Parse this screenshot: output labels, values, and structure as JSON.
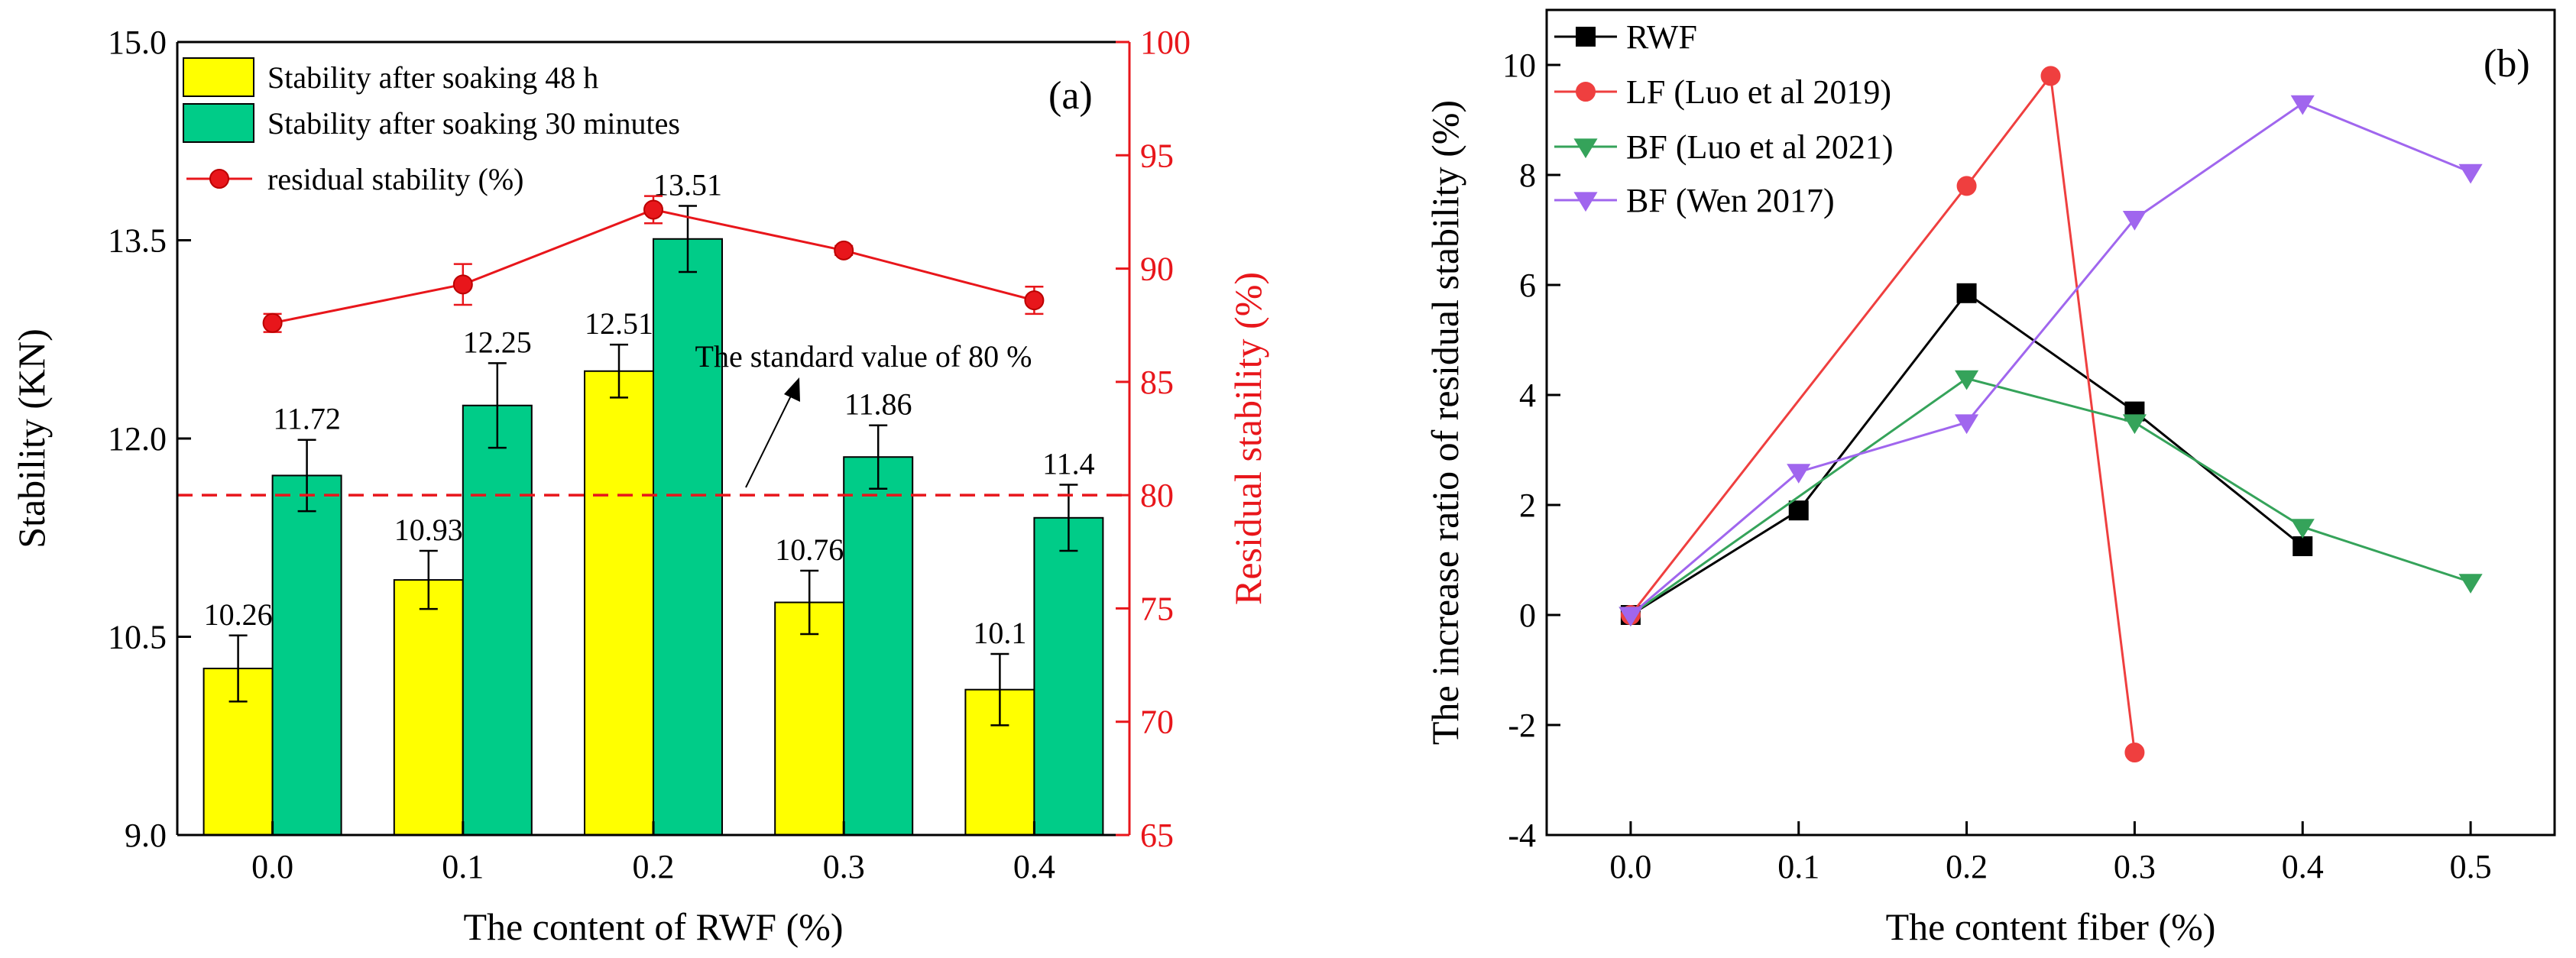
{
  "chart_data": [
    {
      "type": "bar",
      "panel_label": "(a)",
      "categories": [
        "0.0",
        "0.1",
        "0.2",
        "0.3",
        "0.4"
      ],
      "xlabel": "The content of RWF (%)",
      "ylabel": "Stability (KN)",
      "ylim": [
        9.0,
        15.0
      ],
      "yticks": [
        "9.0",
        "10.5",
        "12.0",
        "13.5",
        "15.0"
      ],
      "y2label": "Residual stability (%)",
      "y2lim": [
        65,
        100
      ],
      "y2ticks": [
        "65",
        "70",
        "75",
        "80",
        "85",
        "90",
        "95",
        "100"
      ],
      "y2_color": "#e8161b",
      "series": [
        {
          "name": "Stability after soaking 48 h",
          "color": "#ffff00",
          "values": [
            10.26,
            10.93,
            12.51,
            10.76,
            10.1
          ],
          "labels": [
            "10.26",
            "10.93",
            "12.51",
            "10.76",
            "10.1"
          ],
          "errors": [
            0.25,
            0.22,
            0.2,
            0.24,
            0.27
          ]
        },
        {
          "name": "Stability after soaking 30 minutes",
          "color": "#00cc88",
          "values": [
            11.72,
            12.25,
            13.51,
            11.86,
            11.4
          ],
          "labels": [
            "11.72",
            "12.25",
            "13.51",
            "11.86",
            "11.4"
          ],
          "errors": [
            0.27,
            0.32,
            0.25,
            0.24,
            0.25
          ]
        },
        {
          "name": "residual stability (%)",
          "type": "line",
          "axis": "right",
          "color": "#e8161b",
          "values": [
            87.6,
            89.3,
            92.6,
            90.8,
            88.6
          ],
          "errors": [
            0.4,
            0.9,
            0.6,
            0.2,
            0.6
          ]
        }
      ],
      "reference_line": {
        "value": 80,
        "axis": "right",
        "label": "The standard value of 80 %"
      },
      "legend": "top-left"
    },
    {
      "type": "line",
      "panel_label": "(b)",
      "xlabel": "The content fiber (%)",
      "ylabel": "The increase ratio of residual stability (%)",
      "xlim": [
        -0.05,
        0.55
      ],
      "xticks": [
        "0.0",
        "0.1",
        "0.2",
        "0.3",
        "0.4",
        "0.5"
      ],
      "ylim": [
        -4,
        11
      ],
      "yticks": [
        "-4",
        "-2",
        "0",
        "2",
        "4",
        "6",
        "8",
        "10"
      ],
      "series": [
        {
          "name": "RWF",
          "color": "#000000",
          "marker": "square",
          "x": [
            0.0,
            0.1,
            0.2,
            0.3,
            0.4
          ],
          "y": [
            0,
            1.9,
            5.85,
            3.7,
            1.25
          ]
        },
        {
          "name": "LF (Luo et al 2019)",
          "color": "#ef3f3f",
          "marker": "circle",
          "x": [
            0.0,
            0.2,
            0.25,
            0.3
          ],
          "y": [
            0,
            7.8,
            9.8,
            -2.5
          ]
        },
        {
          "name": "BF (Luo et al 2021)",
          "color": "#35a35a",
          "marker": "triangle-down",
          "x": [
            0.0,
            0.2,
            0.3,
            0.4,
            0.5
          ],
          "y": [
            0,
            4.3,
            3.5,
            1.6,
            0.6
          ]
        },
        {
          "name": "BF (Wen 2017)",
          "color": "#a066ee",
          "marker": "triangle-down",
          "x": [
            0.0,
            0.1,
            0.2,
            0.3,
            0.4,
            0.5
          ],
          "y": [
            0,
            2.6,
            3.5,
            7.2,
            9.3,
            8.05
          ]
        }
      ],
      "legend": "top-left"
    }
  ]
}
